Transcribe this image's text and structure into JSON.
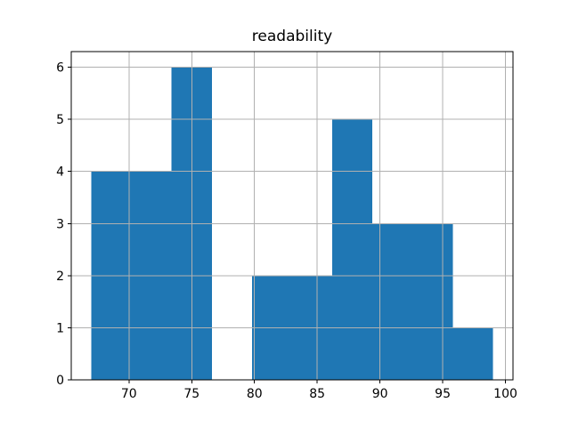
{
  "chart_data": {
    "type": "bar",
    "chart_kind": "histogram",
    "title": "readability",
    "bin_edges": [
      67.0,
      70.2,
      73.4,
      76.6,
      79.8,
      83.0,
      86.2,
      89.4,
      92.6,
      95.8,
      99.0
    ],
    "values": [
      4,
      4,
      6,
      0,
      2,
      2,
      5,
      3,
      3,
      1
    ],
    "xlabel": "",
    "ylabel": "",
    "xlim": [
      65.4,
      100.6
    ],
    "ylim": [
      0,
      6.3
    ],
    "xticks": [
      70,
      75,
      80,
      85,
      90,
      95,
      100
    ],
    "yticks": [
      0,
      1,
      2,
      3,
      4,
      5,
      6
    ],
    "grid": true,
    "grid_position": "above-bars",
    "legend_position": "none",
    "bar_color": "#1f77b4",
    "grid_color": "#b0b0b0",
    "spine_color": "#000000",
    "background_color": "#ffffff"
  }
}
